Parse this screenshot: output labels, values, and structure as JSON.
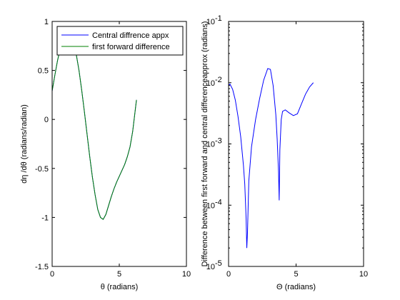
{
  "chart_data": [
    {
      "type": "line",
      "xlabel": "θ (radians)",
      "ylabel": "dη /dθ (radians/radian)",
      "xlim": [
        0,
        10
      ],
      "ylim": [
        -1.5,
        1
      ],
      "xticks": [
        0,
        5,
        10
      ],
      "yticks": [
        -1.5,
        -1,
        -0.5,
        0,
        0.5,
        1
      ],
      "xtick_labels": [
        "0",
        "5",
        "10"
      ],
      "ytick_labels": [
        "-1.5",
        "-1",
        "-0.5",
        "0",
        "0.5",
        "1"
      ],
      "legend_position": "top-right",
      "series": [
        {
          "name": "Central diffrence appx",
          "color": "#0000ff",
          "x": [
            0.0,
            0.2,
            0.4,
            0.6,
            0.8,
            1.0,
            1.2,
            1.4,
            1.6,
            1.8,
            2.0,
            2.2,
            2.4,
            2.6,
            2.8,
            3.0,
            3.2,
            3.4,
            3.6,
            3.8,
            4.0,
            4.2,
            4.4,
            4.6,
            4.8,
            5.0,
            5.2,
            5.4,
            5.6,
            5.8,
            6.0,
            6.28
          ],
          "y": [
            0.29,
            0.45,
            0.6,
            0.72,
            0.8,
            0.86,
            0.87,
            0.85,
            0.78,
            0.66,
            0.5,
            0.3,
            0.08,
            -0.15,
            -0.38,
            -0.59,
            -0.77,
            -0.92,
            -1.0,
            -1.02,
            -0.97,
            -0.88,
            -0.79,
            -0.71,
            -0.64,
            -0.58,
            -0.52,
            -0.46,
            -0.38,
            -0.28,
            -0.12,
            0.2
          ]
        },
        {
          "name": "first forward difference",
          "color": "#008000",
          "x": [
            0.0,
            0.2,
            0.4,
            0.6,
            0.8,
            1.0,
            1.2,
            1.4,
            1.6,
            1.8,
            2.0,
            2.2,
            2.4,
            2.6,
            2.8,
            3.0,
            3.2,
            3.4,
            3.6,
            3.8,
            4.0,
            4.2,
            4.4,
            4.6,
            4.8,
            5.0,
            5.2,
            5.4,
            5.6,
            5.8,
            6.0,
            6.28
          ],
          "y": [
            0.29,
            0.45,
            0.6,
            0.72,
            0.8,
            0.86,
            0.87,
            0.85,
            0.78,
            0.66,
            0.5,
            0.3,
            0.08,
            -0.15,
            -0.38,
            -0.59,
            -0.77,
            -0.92,
            -1.0,
            -1.02,
            -0.97,
            -0.88,
            -0.79,
            -0.71,
            -0.64,
            -0.58,
            -0.52,
            -0.46,
            -0.38,
            -0.28,
            -0.12,
            0.2
          ]
        }
      ]
    },
    {
      "type": "line",
      "scale_y": "log",
      "xlabel": "Θ (radians)",
      "ylabel": "Difference between first forward and central differenceapprox (radians)",
      "xlim": [
        0,
        10
      ],
      "ylim": [
        1e-05,
        0.1
      ],
      "xticks": [
        0,
        5,
        10
      ],
      "xtick_labels": [
        "0",
        "5",
        "10"
      ],
      "yticks": [
        1e-05,
        0.0001,
        0.001,
        0.01,
        0.1
      ],
      "ytick_labels": [
        {
          "base": "10",
          "exp": "-5"
        },
        {
          "base": "10",
          "exp": "-4"
        },
        {
          "base": "10",
          "exp": "-3"
        },
        {
          "base": "10",
          "exp": "-2"
        },
        {
          "base": "10",
          "exp": "-1"
        }
      ],
      "series": [
        {
          "color": "#0000ff",
          "x": [
            0.0,
            0.1,
            0.3,
            0.5,
            0.7,
            0.9,
            1.1,
            1.2,
            1.3,
            1.35,
            1.4,
            1.5,
            1.7,
            2.0,
            2.3,
            2.6,
            2.9,
            3.1,
            3.3,
            3.5,
            3.6,
            3.7,
            3.75,
            3.8,
            3.9,
            4.0,
            4.2,
            4.5,
            4.8,
            5.1,
            5.4,
            5.7,
            6.0,
            6.28
          ],
          "y": [
            0.009,
            0.0095,
            0.0078,
            0.0052,
            0.0028,
            0.0013,
            0.00045,
            0.00022,
            6e-05,
            2e-05,
            3.5e-05,
            0.00025,
            0.0009,
            0.0025,
            0.0055,
            0.011,
            0.017,
            0.0165,
            0.009,
            0.003,
            0.0012,
            0.00035,
            0.00012,
            0.0008,
            0.0025,
            0.0034,
            0.0036,
            0.0032,
            0.0029,
            0.0031,
            0.0045,
            0.0065,
            0.0085,
            0.01
          ]
        }
      ]
    }
  ]
}
